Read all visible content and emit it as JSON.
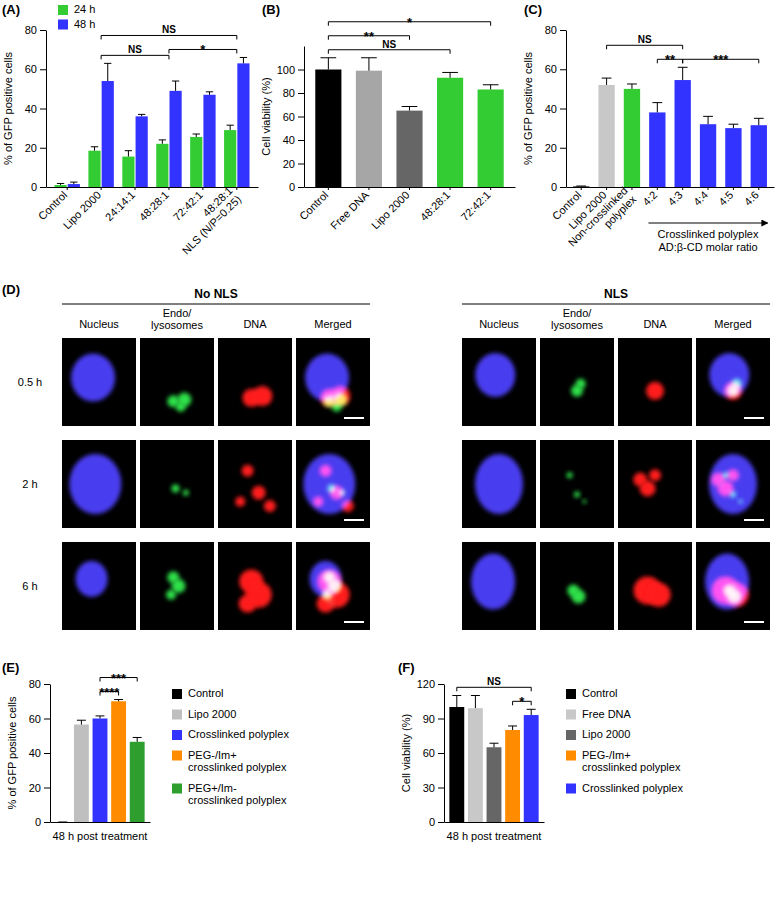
{
  "chart_data": [
    {
      "panel": "(A)",
      "type": "bar",
      "y_label": "% of GFP positive cells",
      "categories": [
        "Control",
        "Lipo 2000",
        "24:14:1",
        "48:28:1",
        "72:42:1",
        "48:28:1\nNLS (N/P=0.25)"
      ],
      "series": [
        {
          "name": "24 h",
          "color": "#33cc33",
          "values": [
            1,
            18.5,
            15.5,
            22,
            25.5,
            29
          ],
          "errors": [
            0.8,
            2,
            3,
            2,
            1.5,
            2.5
          ]
        },
        {
          "name": "48 h",
          "color": "#3333ff",
          "values": [
            1.5,
            54,
            36,
            49,
            47,
            63
          ],
          "errors": [
            1,
            9,
            1,
            5,
            1.5,
            3
          ]
        }
      ],
      "ylim": [
        0,
        80
      ],
      "yticks": [
        0,
        20,
        40,
        60,
        80
      ],
      "legend": "top-left",
      "annotations": [
        {
          "text": "NS",
          "from": 1,
          "to": 3
        },
        {
          "text": "*",
          "from": 3,
          "to": 5
        },
        {
          "text": "NS",
          "from": 1,
          "to": 5
        }
      ]
    },
    {
      "panel": "(B)",
      "type": "bar",
      "y_label": "Cell viability (%)",
      "categories": [
        "Control",
        "Free DNA",
        "Lipo 2000",
        "48:28:1",
        "72:42:1"
      ],
      "values": [
        100,
        99,
        65,
        93,
        83
      ],
      "errors": [
        10,
        11,
        3.5,
        4.5,
        4
      ],
      "colors": [
        "#000000",
        "#a6a6a6",
        "#666666",
        "#33cc33",
        "#33cc33"
      ],
      "ylim": [
        0,
        120
      ],
      "yticks": [
        0,
        20,
        40,
        60,
        80,
        100
      ],
      "annotations": [
        {
          "text": "NS",
          "from": 0,
          "to": 3
        },
        {
          "text": "**",
          "from": 0,
          "to": 2
        },
        {
          "text": "*",
          "from": 0,
          "to": 4
        }
      ]
    },
    {
      "panel": "(C)",
      "type": "bar",
      "y_label": "% of GFP positive cells",
      "categories": [
        "Control",
        "Lipo 2000",
        "Non-crosslinked\npolyplex",
        "4:2",
        "4:3",
        "4:4",
        "4:5",
        "4:6"
      ],
      "values": [
        0.3,
        52,
        50,
        38,
        54.5,
        32,
        30,
        31.5
      ],
      "errors": [
        0.2,
        3.5,
        2.5,
        5,
        6.5,
        4,
        2,
        3.5
      ],
      "colors": [
        "#000000",
        "#c8c8c8",
        "#33cc33",
        "#3333ff",
        "#3333ff",
        "#3333ff",
        "#3333ff",
        "#3333ff"
      ],
      "ylim": [
        0,
        80
      ],
      "yticks": [
        0,
        20,
        40,
        60,
        80
      ],
      "group_label": {
        "text": "Crosslinked polyplex\nAD:β-CD molar ratio",
        "from": 3,
        "to": 7
      },
      "annotations": [
        {
          "text": "**",
          "from": 3,
          "to": 4
        },
        {
          "text": "***",
          "from": 4,
          "to": 7
        },
        {
          "text": "NS",
          "from": 1,
          "to": 4
        }
      ]
    },
    {
      "panel": "(E)",
      "type": "bar",
      "y_label": "% of GFP positive cells",
      "categories": [
        "48 h post treatment"
      ],
      "series": [
        {
          "name": "Control",
          "color": "#000000",
          "values": [
            0
          ],
          "errors": [
            0
          ]
        },
        {
          "name": "Lipo 2000",
          "color": "#bfbfbf",
          "values": [
            56.5
          ],
          "errors": [
            2.5
          ]
        },
        {
          "name": "Crosslinked polyplex",
          "color": "#3333ff",
          "values": [
            60
          ],
          "errors": [
            1.5
          ]
        },
        {
          "name": "PEG-/Im+\ncrosslinked polyplex",
          "color": "#ff8c00",
          "values": [
            70
          ],
          "errors": [
            1
          ]
        },
        {
          "name": "PEG+/Im-\ncrosslinked polyplex",
          "color": "#2e9e2e",
          "values": [
            46.5
          ],
          "errors": [
            2.5
          ]
        }
      ],
      "ylim": [
        0,
        80
      ],
      "yticks": [
        0,
        20,
        40,
        60,
        80
      ],
      "legend": "right",
      "annotations": [
        {
          "text": "****",
          "from": 2,
          "to": 3
        },
        {
          "text": "***",
          "from": 2,
          "to": 4
        }
      ]
    },
    {
      "panel": "(F)",
      "type": "bar",
      "y_label": "Cell viability (%)",
      "categories": [
        "48 h post treatment"
      ],
      "series": [
        {
          "name": "Control",
          "color": "#000000",
          "values": [
            100
          ],
          "errors": [
            10
          ]
        },
        {
          "name": "Free DNA",
          "color": "#c8c8c8",
          "values": [
            99
          ],
          "errors": [
            11
          ]
        },
        {
          "name": "Lipo 2000",
          "color": "#666666",
          "values": [
            65
          ],
          "errors": [
            3.5
          ]
        },
        {
          "name": "PEG-/Im+\ncrosslinked polyplex",
          "color": "#ff8c00",
          "values": [
            80
          ],
          "errors": [
            3.5
          ]
        },
        {
          "name": "Crosslinked polyplex",
          "color": "#3333ff",
          "values": [
            93
          ],
          "errors": [
            5
          ]
        }
      ],
      "ylim": [
        0,
        120
      ],
      "yticks": [
        0,
        30,
        60,
        90,
        120
      ],
      "legend": "right",
      "annotations": [
        {
          "text": "*",
          "from": 3,
          "to": 4
        },
        {
          "text": "NS",
          "from": 0,
          "to": 4
        }
      ]
    }
  ],
  "image_grid": {
    "panel": "(D)",
    "groups": [
      "No NLS",
      "NLS"
    ],
    "columns": [
      "Nucleus",
      "Endo/\nlysosomes",
      "DNA",
      "Merged"
    ],
    "rows": [
      "0.5 h",
      "2 h",
      "6 h"
    ]
  }
}
